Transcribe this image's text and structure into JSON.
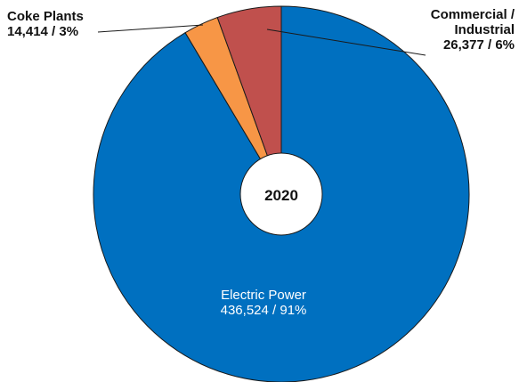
{
  "chart_data": {
    "type": "pie",
    "center_label": "2020",
    "slices": [
      {
        "label": "Electric Power",
        "value": 436524,
        "percent": "91%",
        "value_text": "436,524 / 91%",
        "color": "#0070C0"
      },
      {
        "label": "Coke Plants",
        "value": 14414,
        "percent": "3%",
        "value_text": "14,414 / 3%",
        "color": "#F79646"
      },
      {
        "label": "Commercial / Industrial",
        "label_lines": [
          "Commercial /",
          "Industrial"
        ],
        "value": 26377,
        "percent": "6%",
        "value_text": "26,377 / 6%",
        "color": "#C0504D"
      }
    ]
  }
}
